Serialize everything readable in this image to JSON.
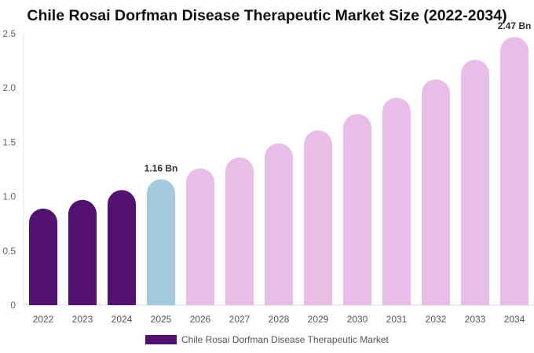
{
  "chart_data": {
    "type": "bar",
    "title": "Chile Rosai Dorfman Disease Therapeutic Market Size (2022-2034)",
    "categories": [
      "2022",
      "2023",
      "2024",
      "2025",
      "2026",
      "2027",
      "2028",
      "2029",
      "2030",
      "2031",
      "2032",
      "2033",
      "2034"
    ],
    "series": [
      {
        "name": "Chile Rosai Dorfman Disease Therapeutic Market",
        "values": [
          0.89,
          0.97,
          1.06,
          1.16,
          1.26,
          1.36,
          1.49,
          1.61,
          1.76,
          1.91,
          2.08,
          2.26,
          2.47
        ]
      }
    ],
    "bar_colors": [
      "#541270",
      "#541270",
      "#541270",
      "#a3cadf",
      "#e8bde8",
      "#e8bde8",
      "#e8bde8",
      "#e8bde8",
      "#e8bde8",
      "#e8bde8",
      "#e8bde8",
      "#e8bde8",
      "#e8bde8"
    ],
    "data_labels": [
      {
        "index": 3,
        "text": "1.16 Bn"
      },
      {
        "index": 12,
        "text": "2.47 Bn"
      }
    ],
    "yticks": [
      "0",
      "0.5",
      "1.0",
      "1.5",
      "2.0",
      "2.5"
    ],
    "ylim": [
      0,
      2.5
    ],
    "xlabel": "",
    "ylabel": "",
    "legend": {
      "position": "bottom",
      "swatch_color": "#541270"
    },
    "grid": false
  }
}
